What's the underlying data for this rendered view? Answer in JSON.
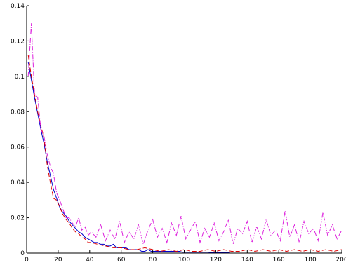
{
  "chart_data": {
    "type": "line",
    "title": "",
    "xlabel": "",
    "ylabel": "",
    "xlim": [
      0,
      200
    ],
    "ylim": [
      0,
      0.14
    ],
    "grid": false,
    "legend": "none",
    "x_ticks": [
      0,
      20,
      40,
      60,
      80,
      100,
      120,
      140,
      160,
      180,
      200
    ],
    "x_tick_labels": [
      "0",
      "20",
      "40",
      "60",
      "80",
      "100",
      "120",
      "140",
      "160",
      "180",
      "200"
    ],
    "y_ticks": [
      0,
      0.02,
      0.04,
      0.06,
      0.08,
      0.1,
      0.12,
      0.14
    ],
    "y_tick_labels": [
      "0",
      "0.02",
      "0.04",
      "0.06",
      "0.08",
      "0.1",
      "0.12",
      "0.14"
    ],
    "series": [
      {
        "color": "#0000cc",
        "style": "solid",
        "x": [
          1,
          3,
          5,
          7,
          9,
          11,
          13,
          15,
          17,
          19,
          21,
          23,
          25,
          27,
          29,
          31,
          33,
          35,
          37,
          39,
          41,
          43,
          45,
          47,
          49,
          51,
          53,
          55,
          57,
          59,
          61,
          63,
          65,
          67,
          69,
          71,
          73,
          75,
          77,
          79,
          81,
          83,
          85,
          87,
          89,
          91,
          93,
          95,
          97,
          99,
          101,
          103,
          105,
          107,
          109,
          111,
          113,
          115,
          117,
          119,
          121,
          123,
          125,
          127,
          129
        ],
        "y": [
          0.108,
          0.098,
          0.088,
          0.079,
          0.07,
          0.062,
          0.052,
          0.044,
          0.036,
          0.031,
          0.026,
          0.023,
          0.021,
          0.018,
          0.016,
          0.014,
          0.012,
          0.011,
          0.009,
          0.008,
          0.007,
          0.006,
          0.006,
          0.005,
          0.005,
          0.004,
          0.004,
          0.005,
          0.003,
          0.003,
          0.003,
          0.003,
          0.002,
          0.002,
          0.002,
          0.002,
          0.001,
          0.001,
          0.002,
          0.001,
          0.001,
          0.001,
          0.001,
          0.001,
          0.001,
          0.001,
          0.001,
          0.001,
          0.001,
          0.0005,
          0.0005,
          0.0005,
          0.0005,
          0.0005,
          0.0005,
          0.0005,
          0.0005,
          0.0005,
          0.0003,
          0.0003,
          0.0003,
          0.0003,
          0.0002,
          0.0002,
          0.0002
        ]
      },
      {
        "color": "#dd0000",
        "style": "dashed",
        "x": [
          1,
          3,
          5,
          7,
          9,
          11,
          13,
          15,
          17,
          19,
          21,
          23,
          25,
          27,
          29,
          31,
          33,
          35,
          37,
          39,
          41,
          45,
          50,
          55,
          60,
          65,
          70,
          75,
          80,
          85,
          90,
          95,
          100,
          105,
          110,
          115,
          120,
          125,
          130,
          135,
          140,
          145,
          150,
          155,
          160,
          165,
          170,
          175,
          180,
          185,
          190,
          195,
          200
        ],
        "y": [
          0.112,
          0.1,
          0.09,
          0.08,
          0.072,
          0.065,
          0.05,
          0.04,
          0.031,
          0.03,
          0.026,
          0.022,
          0.019,
          0.017,
          0.014,
          0.012,
          0.011,
          0.009,
          0.008,
          0.006,
          0.006,
          0.005,
          0.004,
          0.003,
          0.003,
          0.002,
          0.002,
          0.003,
          0.002,
          0.001,
          0.002,
          0.001,
          0.002,
          0.001,
          0.001,
          0.002,
          0.001,
          0.002,
          0.001,
          0.001,
          0.002,
          0.001,
          0.002,
          0.001,
          0.002,
          0.001,
          0.002,
          0.001,
          0.002,
          0.001,
          0.002,
          0.001,
          0.002
        ]
      },
      {
        "color": "#dd22dd",
        "style": "dashdot",
        "x": [
          1,
          3,
          5,
          7,
          9,
          11,
          13,
          15,
          17,
          19,
          21,
          23,
          25,
          27,
          29,
          31,
          33,
          35,
          37,
          39,
          41,
          44,
          47,
          50,
          53,
          56,
          59,
          62,
          65,
          68,
          71,
          74,
          77,
          80,
          83,
          86,
          89,
          92,
          95,
          98,
          101,
          104,
          107,
          110,
          113,
          116,
          119,
          122,
          125,
          128,
          131,
          134,
          137,
          140,
          143,
          146,
          149,
          152,
          155,
          158,
          161,
          164,
          167,
          170,
          173,
          176,
          179,
          182,
          185,
          188,
          191,
          194,
          197,
          200
        ],
        "y": [
          0.1,
          0.13,
          0.09,
          0.088,
          0.07,
          0.066,
          0.056,
          0.049,
          0.045,
          0.034,
          0.03,
          0.025,
          0.02,
          0.02,
          0.017,
          0.015,
          0.02,
          0.013,
          0.015,
          0.01,
          0.012,
          0.009,
          0.016,
          0.007,
          0.013,
          0.008,
          0.018,
          0.006,
          0.012,
          0.008,
          0.016,
          0.005,
          0.013,
          0.019,
          0.009,
          0.014,
          0.006,
          0.017,
          0.01,
          0.021,
          0.008,
          0.013,
          0.018,
          0.006,
          0.014,
          0.009,
          0.017,
          0.007,
          0.012,
          0.019,
          0.005,
          0.014,
          0.011,
          0.018,
          0.006,
          0.015,
          0.008,
          0.019,
          0.01,
          0.013,
          0.007,
          0.024,
          0.009,
          0.016,
          0.006,
          0.018,
          0.011,
          0.014,
          0.007,
          0.023,
          0.01,
          0.016,
          0.008,
          0.013
        ]
      }
    ]
  }
}
